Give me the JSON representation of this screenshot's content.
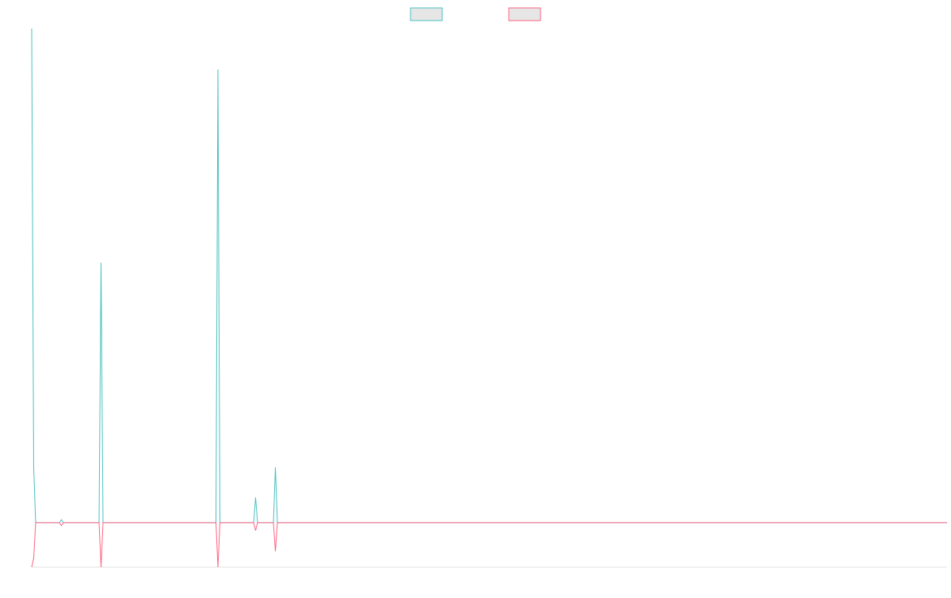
{
  "chart_data": {
    "type": "line",
    "x": [
      0,
      1,
      2,
      14,
      15,
      16,
      34,
      35,
      36,
      93,
      94,
      95,
      112,
      113,
      114,
      122,
      123,
      124,
      462
    ],
    "series": [
      {
        "color": "#4bc0c0",
        "values": [
          100,
          11.2,
          0,
          0,
          0.6,
          0,
          0,
          52.6,
          0,
          0,
          91.7,
          0,
          0,
          5.1,
          0,
          0,
          11.2,
          0,
          0
        ]
      },
      {
        "color": "#ff6384",
        "values": [
          -9,
          -7.2,
          0,
          0,
          -0.6,
          0,
          0,
          -9,
          0,
          0,
          -9,
          0,
          0,
          -1.6,
          0,
          0,
          -5.8,
          0,
          0
        ]
      }
    ],
    "xlim": [
      0,
      462
    ],
    "ylim": [
      -9,
      100
    ],
    "legend": "top"
  }
}
